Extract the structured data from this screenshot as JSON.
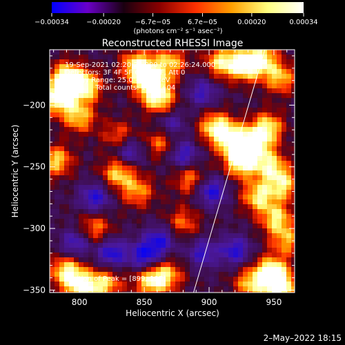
{
  "chart_data": {
    "type": "heatmap",
    "title": "Reconstructed RHESSI Image",
    "xlabel": "Heliocentric X (arcsec)",
    "ylabel": "Heliocentric Y (arcsec)",
    "xlim": [
      777,
      966
    ],
    "ylim": [
      -352,
      -155
    ],
    "x_ticks": [
      800,
      850,
      900,
      950
    ],
    "y_ticks": [
      -200,
      -250,
      -300,
      -350
    ],
    "x_tick_labels": [
      "800",
      "850",
      "900",
      "950"
    ],
    "y_tick_labels": [
      "−200",
      "−250",
      "−300",
      "−350"
    ],
    "colorbar": {
      "min": -0.00034,
      "max": 0.00034,
      "tick_values": [
        -0.00034,
        -0.0002,
        -6.7e-05,
        6.7e-05,
        0.0002,
        0.00034
      ],
      "tick_labels": [
        "−0.00034",
        "−0.00020",
        "−6.7e−05",
        "6.7e−05",
        "0.00020",
        "0.00034"
      ],
      "units": "(photons cm⁻² s⁻¹ asec⁻²)",
      "colors": [
        "#0000ff",
        "#6a00c8",
        "#1a0010",
        "#8a0000",
        "#ff3000",
        "#ffa000",
        "#ffff80",
        "#ffffff"
      ]
    },
    "annotations": [
      "19-Sep-2021 02:20:24.000 to 02:26:24.000",
      "Detectors: 3F 4F 5F 6F 7F 8F, Att 0",
      "Energy Range: 25.0 - 50.0 keV",
      "Clean     Total counts: 1.54e+04"
    ],
    "peak_label": "Position of Peak = [899,-197]",
    "peak": [
      899,
      -197
    ],
    "limb_line": [
      [
        888,
        -352
      ],
      [
        943,
        -155
      ]
    ],
    "bright_regions": [
      {
        "x": 784,
        "y": -195,
        "level": 0.95
      },
      {
        "x": 790,
        "y": -178,
        "level": 1.0
      },
      {
        "x": 805,
        "y": -185,
        "level": 0.85
      },
      {
        "x": 800,
        "y": -210,
        "level": 0.7
      },
      {
        "x": 845,
        "y": -168,
        "level": 0.9
      },
      {
        "x": 855,
        "y": -182,
        "level": 1.0
      },
      {
        "x": 862,
        "y": -196,
        "level": 0.75
      },
      {
        "x": 870,
        "y": -165,
        "level": 0.7
      },
      {
        "x": 910,
        "y": -165,
        "level": 0.8
      },
      {
        "x": 928,
        "y": -168,
        "level": 0.85
      },
      {
        "x": 940,
        "y": -162,
        "level": 0.8
      },
      {
        "x": 955,
        "y": -178,
        "level": 0.7
      },
      {
        "x": 905,
        "y": -218,
        "level": 0.85
      },
      {
        "x": 918,
        "y": -228,
        "level": 0.9
      },
      {
        "x": 925,
        "y": -246,
        "level": 1.0
      },
      {
        "x": 935,
        "y": -232,
        "level": 0.85
      },
      {
        "x": 945,
        "y": -218,
        "level": 0.8
      },
      {
        "x": 948,
        "y": -250,
        "level": 0.75
      },
      {
        "x": 958,
        "y": -265,
        "level": 0.7
      },
      {
        "x": 938,
        "y": -274,
        "level": 0.8
      },
      {
        "x": 952,
        "y": -292,
        "level": 0.75
      },
      {
        "x": 960,
        "y": -310,
        "level": 0.6
      },
      {
        "x": 948,
        "y": -335,
        "level": 0.9
      },
      {
        "x": 955,
        "y": -348,
        "level": 1.0
      },
      {
        "x": 932,
        "y": -345,
        "level": 0.7
      },
      {
        "x": 790,
        "y": -335,
        "level": 0.85
      },
      {
        "x": 802,
        "y": -348,
        "level": 0.9
      },
      {
        "x": 820,
        "y": -345,
        "level": 0.7
      },
      {
        "x": 855,
        "y": -343,
        "level": 0.8
      },
      {
        "x": 868,
        "y": -338,
        "level": 0.6
      },
      {
        "x": 782,
        "y": -245,
        "level": 0.75
      },
      {
        "x": 830,
        "y": -255,
        "level": 0.75
      },
      {
        "x": 845,
        "y": -270,
        "level": 0.6
      },
      {
        "x": 812,
        "y": -300,
        "level": 0.55
      },
      {
        "x": 880,
        "y": -295,
        "level": 0.5
      },
      {
        "x": 830,
        "y": -225,
        "level": 0.5
      },
      {
        "x": 885,
        "y": -260,
        "level": 0.55
      },
      {
        "x": 863,
        "y": -230,
        "level": 0.55
      }
    ],
    "dim_regions": [
      {
        "x": 812,
        "y": -275,
        "level": -0.7
      },
      {
        "x": 825,
        "y": -320,
        "level": -0.75
      },
      {
        "x": 850,
        "y": -322,
        "level": -0.8
      },
      {
        "x": 862,
        "y": -310,
        "level": -0.7
      },
      {
        "x": 880,
        "y": -240,
        "level": -0.65
      },
      {
        "x": 902,
        "y": -270,
        "level": -0.75
      },
      {
        "x": 895,
        "y": -320,
        "level": -0.6
      },
      {
        "x": 920,
        "y": -318,
        "level": -0.7
      },
      {
        "x": 838,
        "y": -238,
        "level": -0.6
      },
      {
        "x": 797,
        "y": -312,
        "level": -0.6
      },
      {
        "x": 870,
        "y": -215,
        "level": -0.5
      },
      {
        "x": 895,
        "y": -190,
        "level": -0.55
      }
    ]
  },
  "footer": {
    "date": "2–May–2022 18:15"
  }
}
